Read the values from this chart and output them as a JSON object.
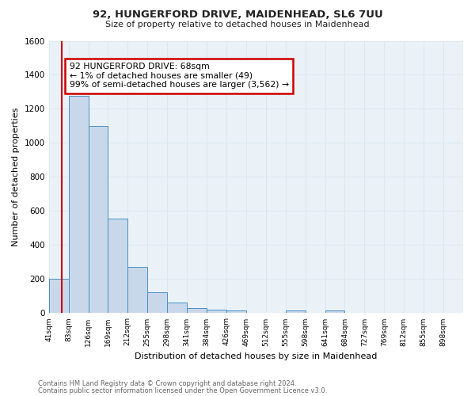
{
  "title": "92, HUNGERFORD DRIVE, MAIDENHEAD, SL6 7UU",
  "subtitle": "Size of property relative to detached houses in Maidenhead",
  "xlabel": "Distribution of detached houses by size in Maidenhead",
  "ylabel": "Number of detached properties",
  "footnote1": "Contains HM Land Registry data © Crown copyright and database right 2024.",
  "footnote2": "Contains public sector information licensed under the Open Government Licence v3.0.",
  "bin_labels": [
    "41sqm",
    "83sqm",
    "126sqm",
    "169sqm",
    "212sqm",
    "255sqm",
    "298sqm",
    "341sqm",
    "384sqm",
    "426sqm",
    "469sqm",
    "512sqm",
    "555sqm",
    "598sqm",
    "641sqm",
    "684sqm",
    "727sqm",
    "769sqm",
    "812sqm",
    "855sqm",
    "898sqm"
  ],
  "bar_values": [
    200,
    1275,
    1100,
    555,
    270,
    125,
    62,
    32,
    20,
    15,
    0,
    0,
    15,
    0,
    18,
    0,
    0,
    0,
    0,
    0,
    0
  ],
  "bar_color": "#c8d8ea",
  "bar_edge_color": "#4a90c4",
  "grid_color": "#dce8f0",
  "annotation_text": "92 HUNGERFORD DRIVE: 68sqm\n← 1% of detached houses are smaller (49)\n99% of semi-detached houses are larger (3,562) →",
  "annotation_box_color": "#ffffff",
  "annotation_box_edge": "#cc0000",
  "red_line_color": "#cc0000",
  "ylim": [
    0,
    1600
  ],
  "fig_background": "#ffffff",
  "axes_background": "#eaf2f8"
}
